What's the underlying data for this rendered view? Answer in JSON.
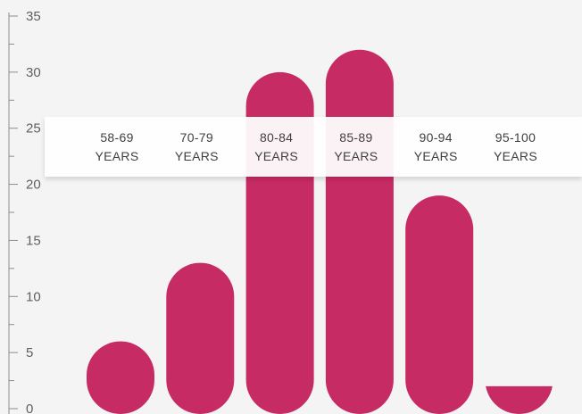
{
  "chart_data": {
    "type": "bar",
    "title": "",
    "xlabel": "",
    "ylabel": "",
    "ylim": [
      0,
      35
    ],
    "y_ticks": [
      0,
      5,
      10,
      15,
      20,
      25,
      30,
      35
    ],
    "minor_tick_step": 2.5,
    "categories": [
      {
        "line1": "58-69",
        "line2": "YEARS"
      },
      {
        "line1": "70-79",
        "line2": "YEARS"
      },
      {
        "line1": "80-84",
        "line2": "YEARS"
      },
      {
        "line1": "85-89",
        "line2": "YEARS"
      },
      {
        "line1": "90-94",
        "line2": "YEARS"
      },
      {
        "line1": "95-100",
        "line2": "YEARS"
      }
    ],
    "values": [
      6,
      13,
      30,
      32,
      19,
      2
    ],
    "grid": false,
    "legend": "none",
    "category_labels_position": "band across chart at y=25"
  },
  "colors": {
    "bar": "#c62b63",
    "background": "#f4f4f4",
    "axis": "#8c8c8c",
    "tick_label": "#5f5f5f",
    "band": "#ffffff",
    "category_label": "#3f3f3f"
  }
}
